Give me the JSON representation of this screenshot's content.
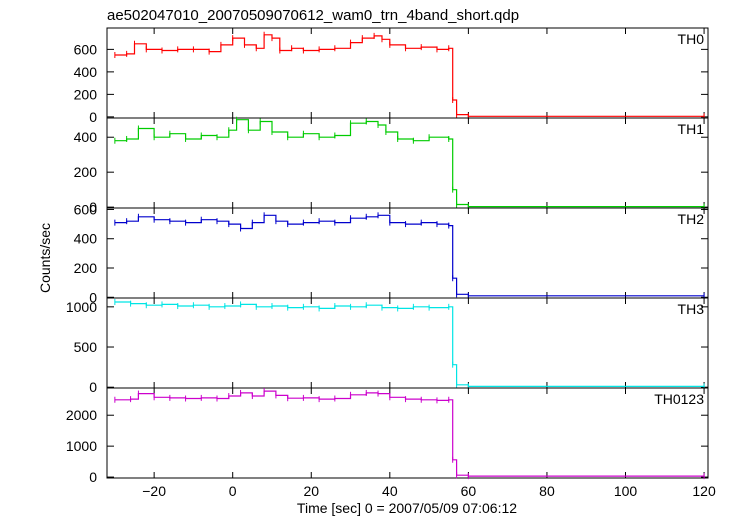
{
  "chart_data": {
    "type": "line",
    "title": "ae502047010_20070509070612_wam0_trn_4band_short.qdp",
    "xlabel": "Time [sec] 0 = 2007/05/09 07:06:12",
    "ylabel": "Counts/sec",
    "xlim": [
      -32,
      121
    ],
    "x_ticks": [
      -20,
      0,
      20,
      40,
      60,
      80,
      100,
      120
    ],
    "x_tick_labels": [
      "−20",
      "0",
      "20",
      "40",
      "60",
      "80",
      "100",
      "120"
    ],
    "grid": false,
    "panels": [
      {
        "name": "TH0",
        "color": "#ff0000",
        "ylim": [
          -10,
          790
        ],
        "y_ticks": [
          0,
          200,
          400,
          600
        ],
        "y_tick_labels": [
          "0",
          "200",
          "400",
          "600"
        ],
        "points": [
          [
            -30,
            550
          ],
          [
            -27,
            560
          ],
          [
            -25,
            650
          ],
          [
            -22,
            600
          ],
          [
            -18,
            590
          ],
          [
            -14,
            600
          ],
          [
            -10,
            600
          ],
          [
            -6,
            580
          ],
          [
            -3,
            640
          ],
          [
            0,
            700
          ],
          [
            3,
            640
          ],
          [
            6,
            610
          ],
          [
            8,
            730
          ],
          [
            10,
            700
          ],
          [
            12,
            590
          ],
          [
            15,
            610
          ],
          [
            18,
            590
          ],
          [
            22,
            600
          ],
          [
            26,
            610
          ],
          [
            30,
            660
          ],
          [
            33,
            700
          ],
          [
            36,
            720
          ],
          [
            38,
            690
          ],
          [
            40,
            640
          ],
          [
            44,
            610
          ],
          [
            48,
            620
          ],
          [
            52,
            600
          ],
          [
            55,
            610
          ],
          [
            56,
            150
          ],
          [
            57,
            20
          ],
          [
            60,
            5
          ],
          [
            120,
            5
          ]
        ]
      },
      {
        "name": "TH1",
        "color": "#00cc00",
        "ylim": [
          -5,
          510
        ],
        "y_ticks": [
          0,
          200,
          400
        ],
        "y_tick_labels": [
          "0",
          "200",
          "400"
        ],
        "points": [
          [
            -30,
            380
          ],
          [
            -27,
            390
          ],
          [
            -24,
            450
          ],
          [
            -20,
            400
          ],
          [
            -16,
            420
          ],
          [
            -12,
            390
          ],
          [
            -8,
            410
          ],
          [
            -4,
            400
          ],
          [
            -1,
            440
          ],
          [
            1,
            500
          ],
          [
            4,
            440
          ],
          [
            7,
            490
          ],
          [
            10,
            430
          ],
          [
            14,
            400
          ],
          [
            18,
            420
          ],
          [
            22,
            400
          ],
          [
            26,
            410
          ],
          [
            30,
            480
          ],
          [
            34,
            490
          ],
          [
            37,
            470
          ],
          [
            39,
            430
          ],
          [
            42,
            390
          ],
          [
            46,
            380
          ],
          [
            50,
            400
          ],
          [
            55,
            390
          ],
          [
            56,
            100
          ],
          [
            57,
            15
          ],
          [
            60,
            3
          ],
          [
            120,
            3
          ]
        ]
      },
      {
        "name": "TH2",
        "color": "#0000cc",
        "ylim": [
          -5,
          610
        ],
        "y_ticks": [
          0,
          200,
          400,
          600
        ],
        "y_tick_labels": [
          "0",
          "200",
          "400",
          "600"
        ],
        "points": [
          [
            -30,
            510
          ],
          [
            -27,
            520
          ],
          [
            -24,
            550
          ],
          [
            -20,
            530
          ],
          [
            -16,
            520
          ],
          [
            -12,
            510
          ],
          [
            -8,
            530
          ],
          [
            -4,
            520
          ],
          [
            -1,
            500
          ],
          [
            2,
            470
          ],
          [
            5,
            510
          ],
          [
            8,
            560
          ],
          [
            11,
            520
          ],
          [
            14,
            500
          ],
          [
            18,
            510
          ],
          [
            22,
            520
          ],
          [
            26,
            510
          ],
          [
            30,
            540
          ],
          [
            34,
            550
          ],
          [
            37,
            560
          ],
          [
            40,
            510
          ],
          [
            44,
            500
          ],
          [
            48,
            510
          ],
          [
            52,
            500
          ],
          [
            55,
            490
          ],
          [
            56,
            130
          ],
          [
            57,
            20
          ],
          [
            60,
            10
          ],
          [
            120,
            10
          ]
        ]
      },
      {
        "name": "TH3",
        "color": "#00e5e5",
        "ylim": [
          -10,
          1110
        ],
        "y_ticks": [
          0,
          500,
          1000
        ],
        "y_tick_labels": [
          "0",
          "500",
          "1000"
        ],
        "points": [
          [
            -30,
            1060
          ],
          [
            -26,
            1040
          ],
          [
            -22,
            1020
          ],
          [
            -18,
            1030
          ],
          [
            -14,
            1010
          ],
          [
            -10,
            1020
          ],
          [
            -6,
            1000
          ],
          [
            -2,
            1010
          ],
          [
            2,
            1030
          ],
          [
            6,
            1000
          ],
          [
            10,
            1010
          ],
          [
            14,
            990
          ],
          [
            18,
            1000
          ],
          [
            22,
            980
          ],
          [
            26,
            1010
          ],
          [
            30,
            1000
          ],
          [
            34,
            1020
          ],
          [
            38,
            990
          ],
          [
            42,
            980
          ],
          [
            46,
            1000
          ],
          [
            50,
            990
          ],
          [
            55,
            1000
          ],
          [
            56,
            280
          ],
          [
            57,
            30
          ],
          [
            60,
            10
          ],
          [
            120,
            10
          ]
        ]
      },
      {
        "name": "TH0123",
        "color": "#cc00cc",
        "ylim": [
          -30,
          2880
        ],
        "y_ticks": [
          0,
          1000,
          2000
        ],
        "y_tick_labels": [
          "0",
          "1000",
          "2000"
        ],
        "points": [
          [
            -30,
            2500
          ],
          [
            -26,
            2520
          ],
          [
            -24,
            2700
          ],
          [
            -20,
            2580
          ],
          [
            -16,
            2560
          ],
          [
            -12,
            2540
          ],
          [
            -8,
            2560
          ],
          [
            -4,
            2540
          ],
          [
            -1,
            2620
          ],
          [
            2,
            2720
          ],
          [
            5,
            2620
          ],
          [
            8,
            2780
          ],
          [
            11,
            2640
          ],
          [
            14,
            2550
          ],
          [
            18,
            2560
          ],
          [
            22,
            2520
          ],
          [
            26,
            2540
          ],
          [
            30,
            2660
          ],
          [
            34,
            2720
          ],
          [
            37,
            2700
          ],
          [
            40,
            2580
          ],
          [
            44,
            2520
          ],
          [
            48,
            2500
          ],
          [
            52,
            2480
          ],
          [
            55,
            2500
          ],
          [
            56,
            560
          ],
          [
            57,
            60
          ],
          [
            60,
            30
          ],
          [
            120,
            30
          ]
        ]
      }
    ]
  }
}
